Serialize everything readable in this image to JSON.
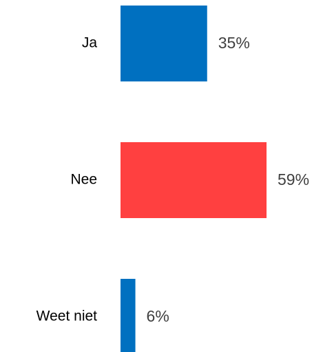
{
  "chart_data": {
    "type": "bar",
    "orientation": "horizontal",
    "categories": [
      "Ja",
      "Nee",
      "Weet niet"
    ],
    "values": [
      35,
      59,
      6
    ],
    "value_labels": [
      "35%",
      "59%",
      "6%"
    ],
    "colors": [
      "#0070C0",
      "#FF4040",
      "#0070C0"
    ],
    "unit": "%",
    "xlim": [
      0,
      59
    ],
    "grid": false,
    "legend": "none"
  }
}
